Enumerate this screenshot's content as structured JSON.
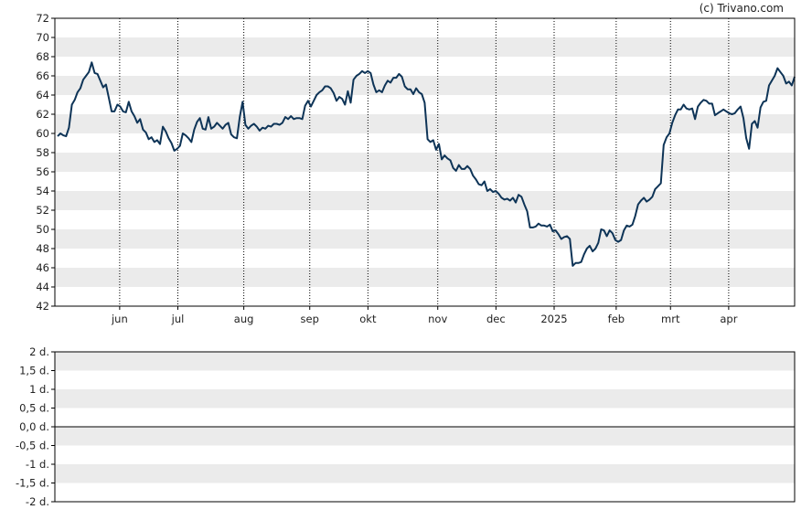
{
  "credit": "(c) Trivano.com",
  "colors": {
    "line": "#0e3457",
    "band": "#ebebeb",
    "axis": "#000000",
    "vgrid": "#000000",
    "zero": "#000000"
  },
  "chart_data": [
    {
      "type": "line",
      "title": "",
      "xlabel": "",
      "ylabel": "",
      "ylim": [
        42,
        72
      ],
      "yticks": [
        "42",
        "44",
        "46",
        "48",
        "50",
        "52",
        "54",
        "56",
        "58",
        "60",
        "62",
        "64",
        "66",
        "68",
        "70",
        "72"
      ],
      "xticks": [
        "jun",
        "jul",
        "aug",
        "sep",
        "okt",
        "nov",
        "dec",
        "2025",
        "feb",
        "mrt",
        "apr"
      ],
      "grid": "alternating horizontal bands, dotted vertical month lines",
      "series": [
        {
          "values": [
            59.7,
            60.0,
            59.8,
            59.7,
            60.6,
            63.0,
            63.5,
            64.3,
            64.7,
            65.6,
            66.0,
            66.4,
            67.4,
            66.3,
            66.2,
            65.5,
            64.8,
            65.1,
            63.7,
            62.3,
            62.3,
            63.0,
            62.8,
            62.3,
            62.2,
            63.3,
            62.3,
            61.8,
            61.1,
            61.5,
            60.4,
            60.1,
            59.4,
            59.6,
            59.1,
            59.3,
            58.9,
            60.7,
            60.2,
            59.5,
            59.0,
            58.2,
            58.4,
            58.7,
            60.0,
            59.8,
            59.5,
            59.1,
            60.4,
            61.2,
            61.6,
            60.5,
            60.4,
            61.7,
            60.5,
            60.7,
            61.1,
            60.8,
            60.5,
            60.9,
            61.1,
            59.9,
            59.6,
            59.5,
            61.7,
            63.3,
            60.9,
            60.5,
            60.8,
            61.0,
            60.7,
            60.3,
            60.6,
            60.5,
            60.8,
            60.7,
            61.0,
            61.0,
            60.9,
            61.1,
            61.7,
            61.5,
            61.8,
            61.5,
            61.6,
            61.6,
            61.5,
            62.9,
            63.4,
            62.8,
            63.4,
            64.0,
            64.3,
            64.5,
            64.9,
            64.9,
            64.7,
            64.2,
            63.4,
            63.8,
            63.6,
            63.0,
            64.4,
            63.2,
            65.6,
            66.0,
            66.2,
            66.5,
            66.3,
            66.5,
            66.3,
            65.1,
            64.3,
            64.5,
            64.3,
            65.0,
            65.5,
            65.3,
            65.8,
            65.8,
            66.2,
            65.9,
            64.9,
            64.6,
            64.6,
            64.1,
            64.7,
            64.3,
            64.1,
            63.2,
            59.4,
            59.1,
            59.3,
            58.3,
            58.9,
            57.3,
            57.7,
            57.4,
            57.2,
            56.4,
            56.1,
            56.7,
            56.3,
            56.3,
            56.6,
            56.3,
            55.6,
            55.2,
            54.7,
            54.6,
            55.0,
            54.0,
            54.2,
            53.9,
            54.0,
            53.7,
            53.3,
            53.1,
            53.2,
            53.0,
            53.3,
            52.8,
            53.6,
            53.4,
            52.6,
            51.9,
            50.2,
            50.2,
            50.3,
            50.6,
            50.4,
            50.4,
            50.3,
            50.5,
            49.8,
            49.9,
            49.5,
            49.0,
            49.2,
            49.3,
            49.0,
            46.2,
            46.5,
            46.5,
            46.6,
            47.4,
            48.0,
            48.3,
            47.7,
            48.0,
            48.6,
            50.0,
            49.9,
            49.3,
            49.9,
            49.6,
            48.9,
            48.7,
            48.9,
            49.9,
            50.4,
            50.3,
            50.5,
            51.4,
            52.6,
            53.0,
            53.3,
            52.9,
            53.1,
            53.4,
            54.2,
            54.5,
            54.8,
            58.8,
            59.6,
            60.0,
            61.1,
            61.9,
            62.5,
            62.5,
            63.0,
            62.6,
            62.5,
            62.6,
            61.5,
            62.8,
            63.2,
            63.5,
            63.4,
            63.1,
            63.1,
            61.9,
            62.1,
            62.3,
            62.5,
            62.3,
            62.1,
            62.0,
            62.1,
            62.5,
            62.8,
            61.6,
            59.5,
            58.4,
            61.0,
            61.3,
            60.6,
            62.7,
            63.3,
            63.4,
            65.0,
            65.5,
            66.0,
            66.8,
            66.4,
            66.0,
            65.2,
            65.4,
            65.0,
            65.9
          ]
        }
      ]
    },
    {
      "type": "line",
      "title": "",
      "xlabel": "",
      "ylabel": "",
      "ylim": [
        -2,
        2
      ],
      "yticks": [
        "2 d.",
        "1,5 d.",
        "1 d.",
        "0,5 d.",
        "0,0 d.",
        "-0,5 d.",
        "-1 d.",
        "-1,5 d.",
        "-2 d."
      ],
      "series": []
    }
  ]
}
